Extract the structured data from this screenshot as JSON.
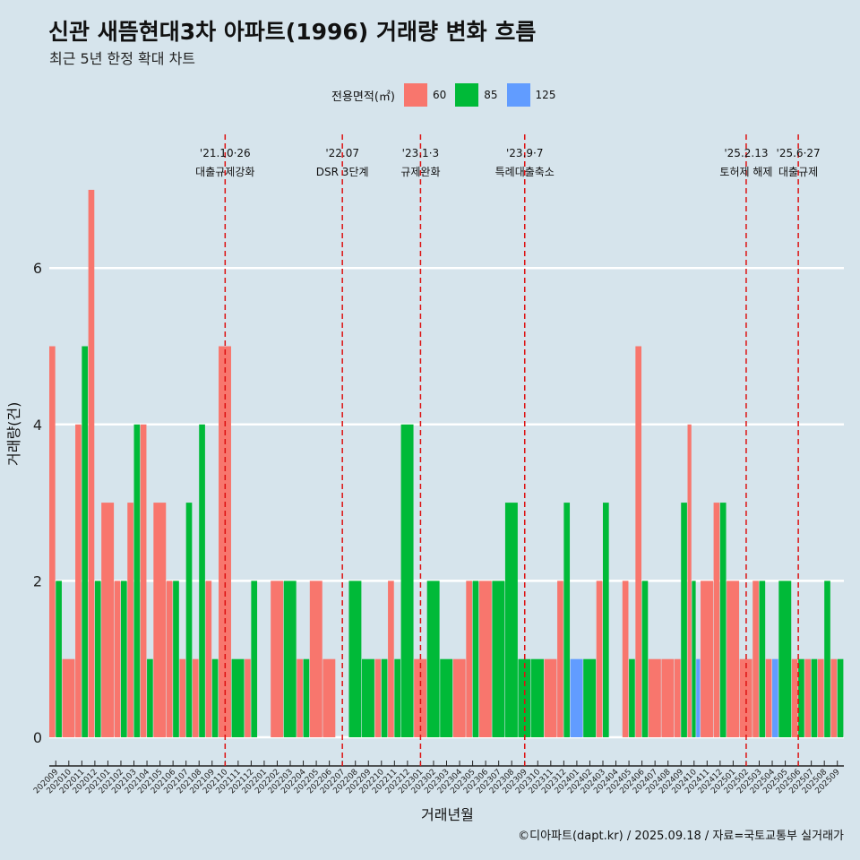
{
  "header": {
    "title": "신관 새뜸현대3차 아파트(1996) 거래량 변화 흐름",
    "subtitle": "최근 5년 한정 확대 차트"
  },
  "legend": {
    "title": "전용면적(㎡)",
    "items": [
      {
        "label": "60",
        "color": "#f8766d"
      },
      {
        "label": "85",
        "color": "#00ba38"
      },
      {
        "label": "125",
        "color": "#619cff"
      }
    ]
  },
  "caption": "©디아파트(dapt.kr) / 2025.09.18 / 자료=국토교통부 실거래가",
  "chart_data": {
    "type": "bar",
    "title": "신관 새뜸현대3차 아파트(1996) 거래량 변화 흐름",
    "xlabel": "거래년월",
    "ylabel": "거래량(건)",
    "ylim": [
      0,
      7
    ],
    "yticks": [
      0,
      2,
      4,
      6
    ],
    "categories": [
      "202009",
      "202010",
      "202011",
      "202012",
      "202101",
      "202102",
      "202103",
      "202104",
      "202105",
      "202106",
      "202107",
      "202108",
      "202109",
      "202110",
      "202111",
      "202112",
      "202201",
      "202202",
      "202203",
      "202204",
      "202205",
      "202206",
      "202207",
      "202208",
      "202209",
      "202210",
      "202211",
      "202212",
      "202301",
      "202302",
      "202303",
      "202304",
      "202305",
      "202306",
      "202307",
      "202308",
      "202309",
      "202310",
      "202311",
      "202312",
      "202401",
      "202402",
      "202403",
      "202404",
      "202405",
      "202406",
      "202407",
      "202408",
      "202409",
      "202410",
      "202411",
      "202412",
      "202501",
      "202502",
      "202503",
      "202504",
      "202505",
      "202506",
      "202507",
      "202508",
      "202509"
    ],
    "series": [
      {
        "name": "60",
        "color": "#f8766d",
        "values": [
          5,
          1,
          4,
          7,
          3,
          2,
          3,
          4,
          3,
          2,
          1,
          1,
          2,
          5,
          0,
          1,
          0,
          2,
          0,
          1,
          2,
          1,
          0,
          0,
          0,
          1,
          2,
          0,
          1,
          0,
          0,
          1,
          2,
          2,
          0,
          0,
          0,
          0,
          1,
          2,
          0,
          0,
          2,
          0,
          2,
          5,
          1,
          1,
          1,
          4,
          2,
          3,
          2,
          1,
          2,
          1,
          0,
          1,
          1,
          1,
          1
        ]
      },
      {
        "name": "85",
        "color": "#00ba38",
        "values": [
          2,
          0,
          5,
          2,
          0,
          2,
          4,
          1,
          0,
          2,
          3,
          4,
          1,
          0,
          1,
          2,
          0,
          0,
          2,
          1,
          0,
          0,
          0,
          2,
          1,
          1,
          1,
          4,
          0,
          2,
          1,
          0,
          2,
          0,
          2,
          3,
          1,
          1,
          0,
          3,
          0,
          1,
          3,
          0,
          1,
          2,
          0,
          0,
          3,
          2,
          0,
          3,
          0,
          0,
          2,
          0,
          2,
          1,
          1,
          2,
          1
        ]
      },
      {
        "name": "125",
        "color": "#619cff",
        "values": [
          0,
          0,
          0,
          0,
          0,
          0,
          0,
          0,
          0,
          0,
          0,
          0,
          0,
          0,
          0,
          0,
          0,
          0,
          0,
          0,
          0,
          0,
          0,
          0,
          0,
          0,
          0,
          0,
          0,
          0,
          0,
          0,
          0,
          0,
          0,
          0,
          0,
          0,
          0,
          0,
          1,
          0,
          0,
          0,
          0,
          0,
          0,
          0,
          0,
          1,
          0,
          0,
          0,
          0,
          0,
          1,
          0,
          0,
          0,
          0,
          0
        ]
      }
    ],
    "events": [
      {
        "date": "202110",
        "label_date": "'21.10·26",
        "label": "대출규제강화"
      },
      {
        "date": "202207",
        "label_date": "'22.07",
        "label": "DSR 3단계"
      },
      {
        "date": "202301",
        "label_date": "'23.1·3",
        "label": "규제완화"
      },
      {
        "date": "202309",
        "label_date": "'23.9·7",
        "label": "특례대출축소"
      },
      {
        "date": "202502",
        "label_date": "'25.2.13",
        "label": "토허제 해제"
      },
      {
        "date": "202506",
        "label_date": "'25.6·27",
        "label": "대출규제"
      }
    ],
    "grid": true,
    "legend_position": "top"
  }
}
